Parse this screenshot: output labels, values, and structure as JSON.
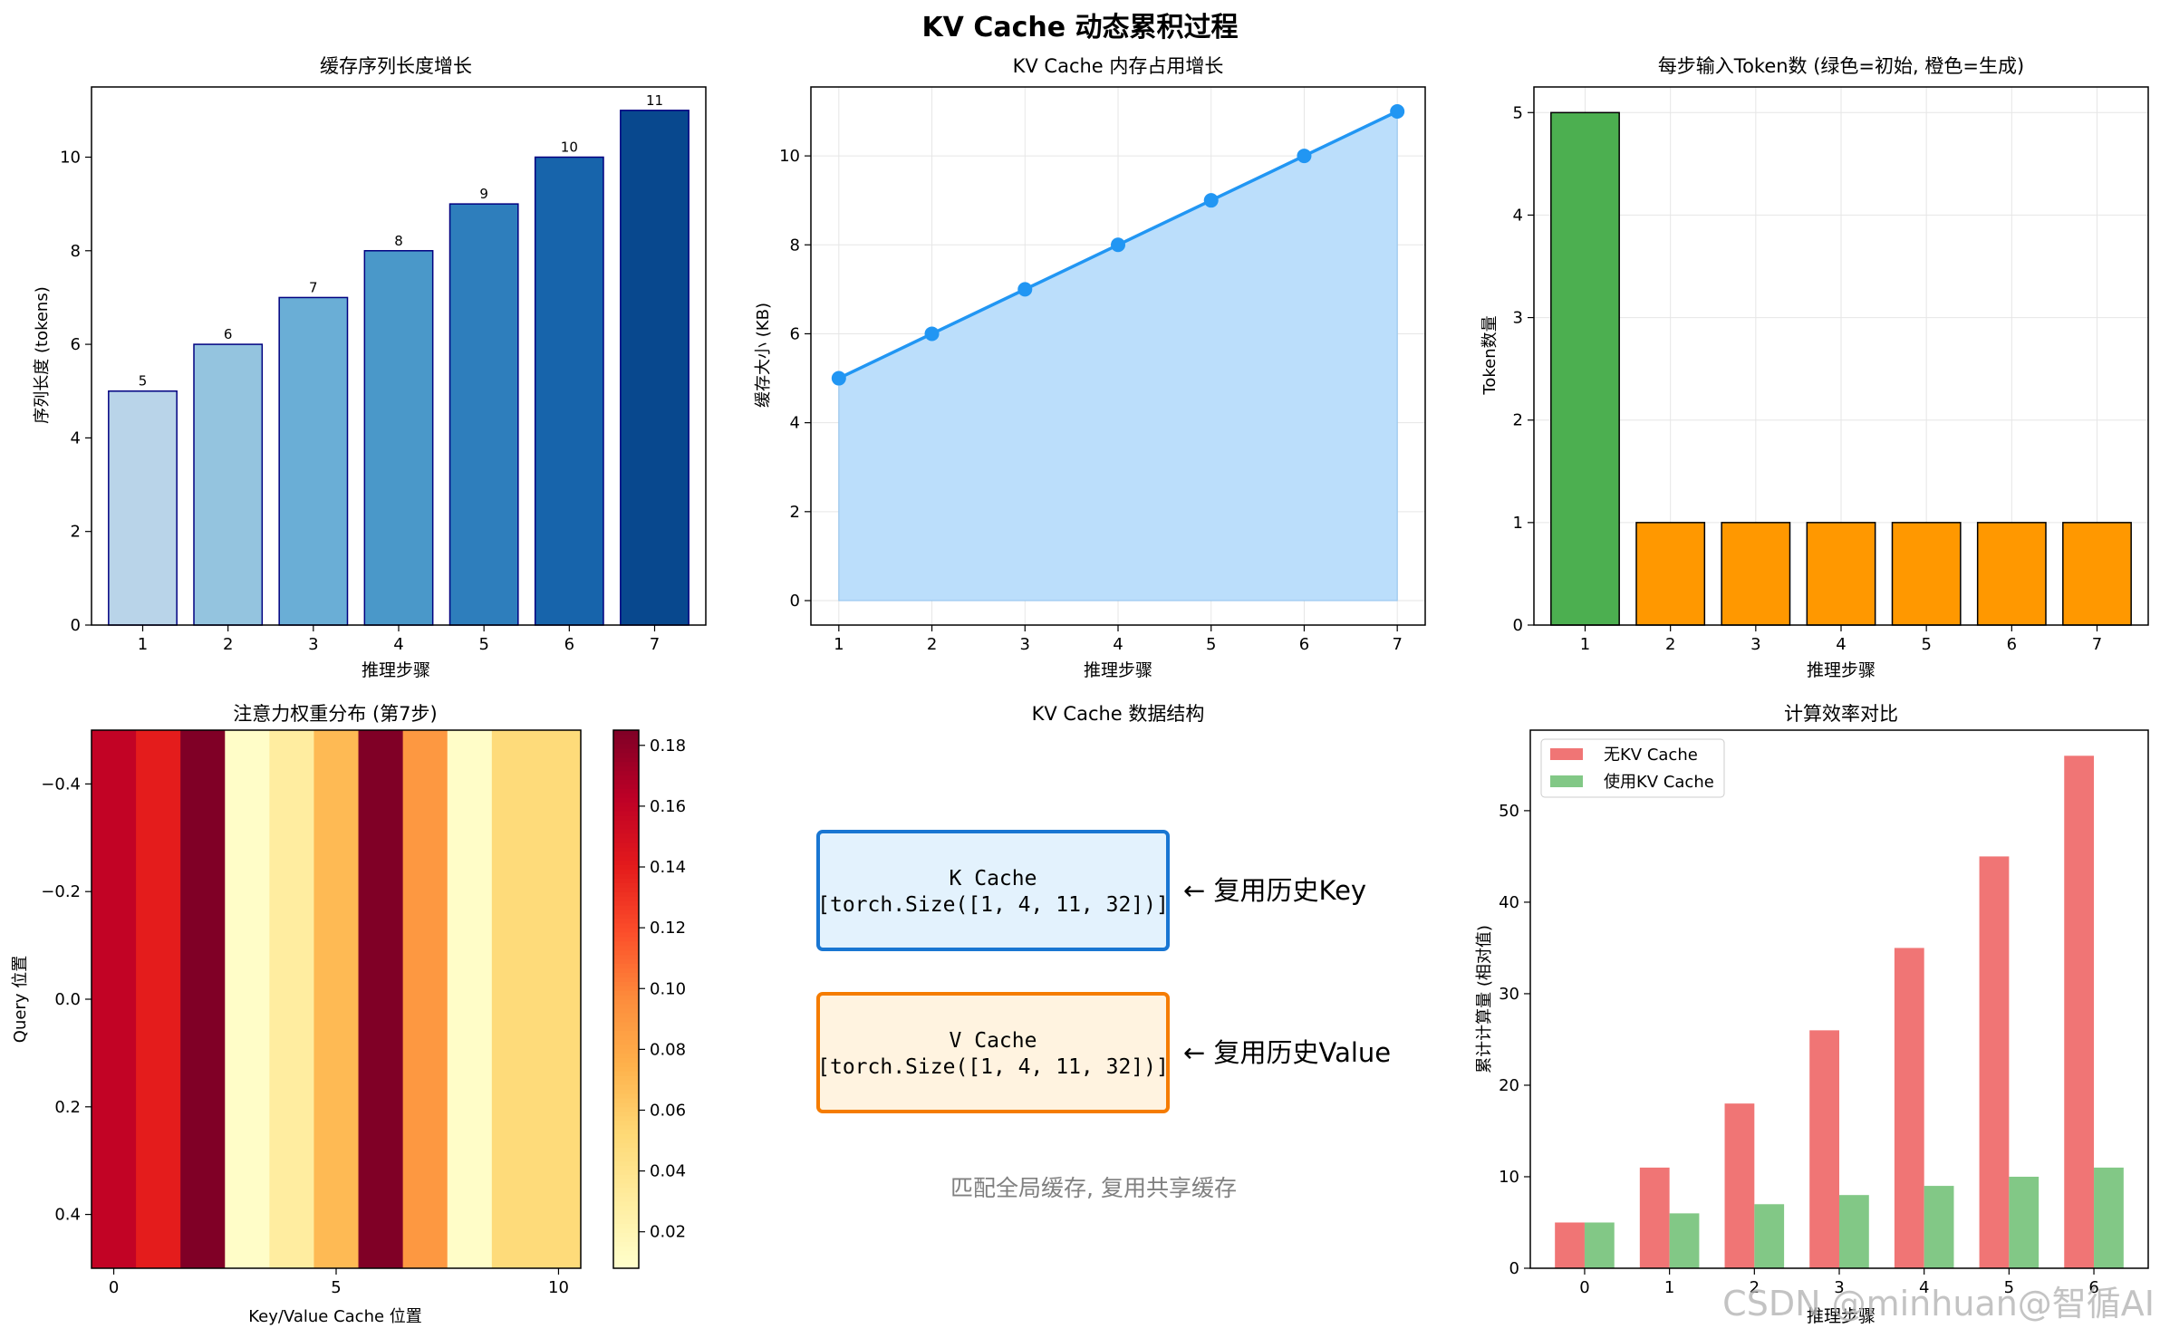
{
  "figure": {
    "title": "KV Cache 动态累积过程",
    "watermark": "CSDN @minhuan@智循AI"
  },
  "chart_data": [
    {
      "id": "seq_len",
      "type": "bar",
      "title": "缓存序列长度增长",
      "xlabel": "推理步骤",
      "ylabel": "序列长度 (tokens)",
      "categories": [
        "1",
        "2",
        "3",
        "4",
        "5",
        "6",
        "7"
      ],
      "values": [
        5,
        6,
        7,
        8,
        9,
        10,
        11
      ],
      "data_labels": [
        "5",
        "6",
        "7",
        "8",
        "9",
        "10",
        "11"
      ],
      "colors": [
        "#b9d4e9",
        "#94c4df",
        "#6aaed6",
        "#4a98c9",
        "#2e7ebc",
        "#1764ab",
        "#08488e"
      ],
      "edge_color": "#000080",
      "ylim": [
        0,
        11.5
      ],
      "yticks": [
        "0",
        "2",
        "4",
        "6",
        "8",
        "10"
      ],
      "grid": false
    },
    {
      "id": "memory",
      "type": "area",
      "title": "KV Cache 内存占用增长",
      "xlabel": "推理步骤",
      "ylabel": "缓存大小 (KB)",
      "x": [
        1,
        2,
        3,
        4,
        5,
        6,
        7
      ],
      "y": [
        5,
        6,
        7,
        8,
        9,
        10,
        11
      ],
      "line_color": "#2196f3",
      "fill_color": "#bbdefb",
      "xlim": [
        0.7,
        7.3
      ],
      "ylim": [
        -0.55,
        11.55
      ],
      "xticks": [
        "1",
        "2",
        "3",
        "4",
        "5",
        "6",
        "7"
      ],
      "yticks": [
        "0",
        "2",
        "4",
        "6",
        "8",
        "10"
      ],
      "grid": true
    },
    {
      "id": "input_tokens",
      "type": "bar",
      "title": "每步输入Token数 (绿色=初始, 橙色=生成)",
      "xlabel": "推理步骤",
      "ylabel": "Token数量",
      "categories": [
        "1",
        "2",
        "3",
        "4",
        "5",
        "6",
        "7"
      ],
      "values": [
        5,
        1,
        1,
        1,
        1,
        1,
        1
      ],
      "colors": [
        "#4caf50",
        "#ff9800",
        "#ff9800",
        "#ff9800",
        "#ff9800",
        "#ff9800",
        "#ff9800"
      ],
      "ylim": [
        0,
        5.25
      ],
      "yticks": [
        "0",
        "1",
        "2",
        "3",
        "4",
        "5"
      ],
      "grid": true
    },
    {
      "id": "attention",
      "type": "heatmap",
      "title": "注意力权重分布 (第7步)",
      "xlabel": "Key/Value Cache 位置",
      "ylabel": "Query 位置",
      "x_ticks": [
        "0",
        "5",
        "10"
      ],
      "y_ticks": [
        "−0.4",
        "−0.2",
        "0.0",
        "0.2",
        "0.4"
      ],
      "values": [
        0.16,
        0.14,
        0.185,
        0.01,
        0.03,
        0.07,
        0.185,
        0.09,
        0.01,
        0.05,
        0.05
      ],
      "colormap": "YlOrRd",
      "vmin": 0.008,
      "vmax": 0.185,
      "colorbar_ticks": [
        "0.02",
        "0.04",
        "0.06",
        "0.08",
        "0.10",
        "0.12",
        "0.14",
        "0.16",
        "0.18"
      ]
    },
    {
      "id": "efficiency",
      "type": "bar",
      "title": "计算效率对比",
      "xlabel": "推理步骤",
      "ylabel": "累计计算量 (相对值)",
      "categories": [
        "0",
        "1",
        "2",
        "3",
        "4",
        "5",
        "6"
      ],
      "series": [
        {
          "name": "无KV Cache",
          "values": [
            5,
            11,
            18,
            26,
            35,
            45,
            56
          ],
          "color": "#f07575"
        },
        {
          "name": "使用KV Cache",
          "values": [
            5,
            6,
            7,
            8,
            9,
            10,
            11
          ],
          "color": "#82c886"
        }
      ],
      "ylim": [
        0,
        58.8
      ],
      "yticks": [
        "0",
        "10",
        "20",
        "30",
        "40",
        "50"
      ],
      "legend": "top-left",
      "grid": false
    }
  ],
  "structure_panel": {
    "title": "KV Cache 数据结构",
    "k_box": {
      "line1": "K Cache",
      "line2": "[torch.Size([1, 4, 11, 32])]",
      "border": "#1976d2",
      "fill": "#e3f2fd"
    },
    "k_note": "← 复用历史Key",
    "v_box": {
      "line1": "V Cache",
      "line2": "[torch.Size([1, 4, 11, 32])]",
      "border": "#f57c00",
      "fill": "#fff3e0"
    },
    "v_note": "← 复用历史Value",
    "footer": "匹配全局缓存, 复用共享缓存"
  }
}
